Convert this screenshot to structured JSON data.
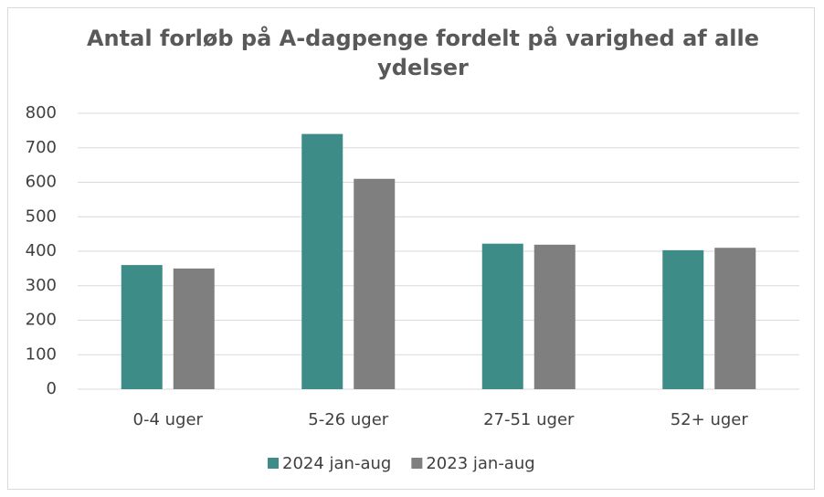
{
  "chart_data": {
    "type": "bar",
    "title": "Antal forløb på A-dagpenge fordelt på varighed af alle ydelser",
    "categories": [
      "0-4 uger",
      "5-26 uger",
      "27-51 uger",
      "52+ uger"
    ],
    "series": [
      {
        "name": "2024 jan-aug",
        "color": "#3d8c87",
        "values": [
          360,
          740,
          422,
          403
        ]
      },
      {
        "name": "2023 jan-aug",
        "color": "#7f7f7f",
        "values": [
          350,
          610,
          419,
          410
        ]
      }
    ],
    "ylim": [
      0,
      800
    ],
    "yticks": [
      0,
      100,
      200,
      300,
      400,
      500,
      600,
      700,
      800
    ],
    "grid": true,
    "legend": "bottom"
  }
}
